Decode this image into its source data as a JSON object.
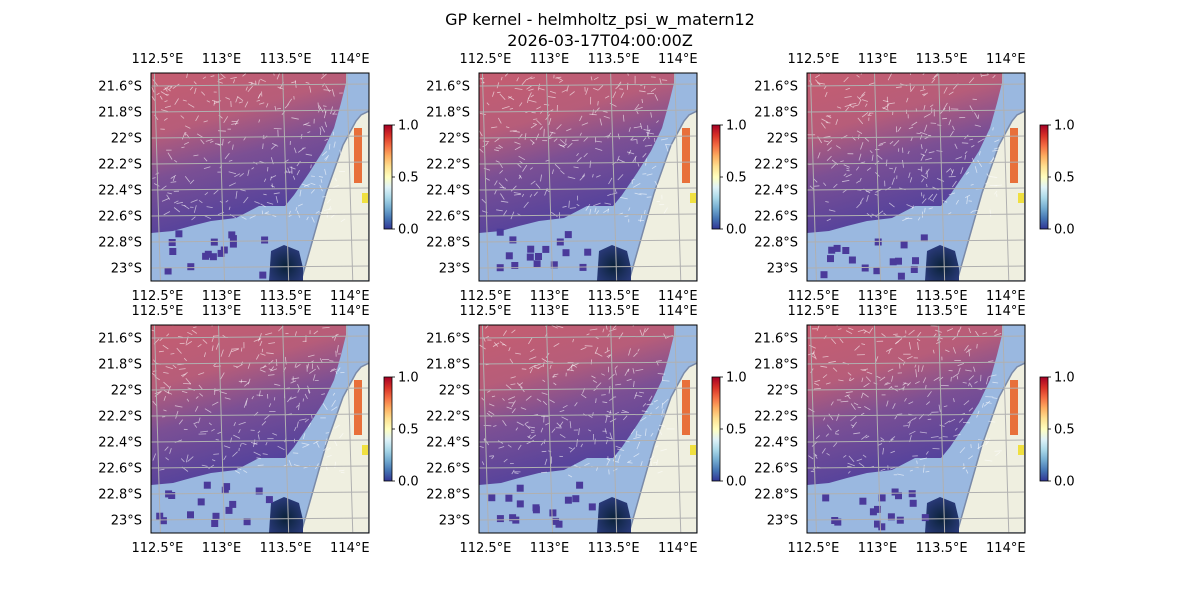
{
  "figure": {
    "title": "GP kernel - helmholtz_psi_w_matern12",
    "subtitle": "2026-03-17T04:00:00Z"
  },
  "map": {
    "lon_ticks": [
      "112.5°E",
      "113°E",
      "113.5°E",
      "114°E"
    ],
    "lat_ticks": [
      "21.6°S",
      "21.8°S",
      "22°S",
      "22.2°S",
      "22.4°S",
      "22.6°S",
      "22.8°S",
      "23°S"
    ],
    "lon_values": [
      112.5,
      113.0,
      113.5,
      114.0
    ],
    "lat_values": [
      -21.6,
      -21.8,
      -22.0,
      -22.2,
      -22.4,
      -22.6,
      -22.8,
      -23.0
    ],
    "extent": {
      "lon": [
        112.45,
        114.15
      ],
      "lat": [
        -21.5,
        -23.1
      ]
    },
    "panel_count": 6,
    "colormap": "RdYlBu_r",
    "colors": {
      "ocean": "#9ab8e0",
      "land": "#efefe0",
      "coastline": "#7a8aa8",
      "gridline": "#b0b0b0",
      "field_high": "#c8586a",
      "field_low": "#4a3a9a",
      "field_deep": "#0e2a4a",
      "arrows": "#ffffff"
    }
  },
  "colorbar": {
    "ticks": [
      "0.0",
      "0.5",
      "1.0"
    ],
    "tick_values": [
      0.0,
      0.5,
      1.0
    ],
    "stops": [
      "#313695",
      "#4575b4",
      "#74add1",
      "#abd9e9",
      "#e0f3f8",
      "#ffffbf",
      "#fee090",
      "#fdae61",
      "#f46d43",
      "#d73027",
      "#a50026"
    ]
  }
}
